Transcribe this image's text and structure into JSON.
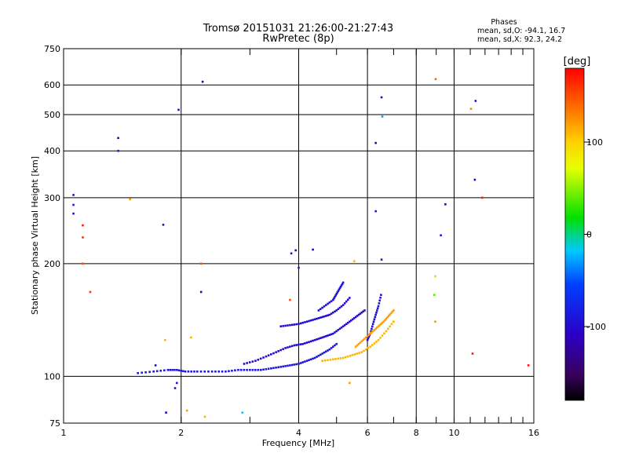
{
  "chart_data": {
    "type": "scatter",
    "title": "Tromsø 20151031 21:26:00-21:27:43",
    "subtitle": "RwPretec (8p)",
    "xlabel": "Frequency [MHz]",
    "ylabel": "Stationary phase Virtual Height [km]",
    "x_scale": "log",
    "y_scale": "log",
    "xlim": [
      1,
      16
    ],
    "ylim": [
      75,
      750
    ],
    "x_ticks": [
      1,
      2,
      4,
      6,
      8,
      10,
      16
    ],
    "x_tick_labels": [
      "1",
      "2",
      "4",
      "6",
      "8",
      "10",
      "16"
    ],
    "y_ticks": [
      75,
      100,
      200,
      300,
      400,
      500,
      600,
      750
    ],
    "y_tick_labels": [
      "75",
      "100",
      "200",
      "300",
      "400",
      "500",
      "600",
      "750"
    ],
    "grid": true,
    "phase_box": {
      "heading": "Phases",
      "line_o": "mean, sd,O: -94.1, 16.7",
      "line_x": "mean, sd,X:  92.3, 24.2"
    },
    "colorbar": {
      "label": "[deg]",
      "range": [
        -180,
        180
      ],
      "ticks": [
        100,
        0,
        -100
      ],
      "tick_labels": [
        "100",
        "0",
        "-100"
      ]
    },
    "traces": [
      {
        "name": "",
        "x": [
          1.55,
          1.7,
          1.85,
          1.95,
          2.05,
          2.2,
          2.4,
          2.6,
          2.8,
          3.0,
          3.2,
          3.4,
          3.6,
          3.8,
          4.0,
          4.2,
          4.4,
          4.6,
          4.8,
          5.0
        ],
        "y": [
          102,
          103,
          104,
          104,
          103,
          103,
          103,
          103,
          104,
          104,
          104,
          105,
          106,
          107,
          108,
          110,
          112,
          115,
          118,
          122
        ],
        "phase": -90
      },
      {
        "name": "",
        "x": [
          2.9,
          3.1,
          3.3,
          3.5,
          3.7,
          3.9,
          4.1,
          4.3,
          4.5,
          4.7,
          4.9,
          5.1,
          5.3,
          5.5,
          5.7,
          5.9
        ],
        "y": [
          108,
          110,
          113,
          116,
          119,
          121,
          122,
          124,
          126,
          128,
          130,
          134,
          138,
          142,
          146,
          150
        ],
        "phase": -100
      },
      {
        "name": "",
        "x": [
          3.6,
          3.8,
          4.0,
          4.2,
          4.4,
          4.6,
          4.8,
          5.0,
          5.2,
          5.4
        ],
        "y": [
          136,
          137,
          138,
          140,
          142,
          144,
          146,
          150,
          155,
          162
        ],
        "phase": -100
      },
      {
        "name": "",
        "x": [
          4.5,
          4.7,
          4.9,
          5.0,
          5.1,
          5.2
        ],
        "y": [
          150,
          155,
          160,
          166,
          172,
          178
        ],
        "phase": -95
      },
      {
        "name": "",
        "x": [
          6.0,
          6.1,
          6.2,
          6.3,
          6.4,
          6.5
        ],
        "y": [
          125,
          130,
          138,
          146,
          154,
          165
        ],
        "phase": -95
      },
      {
        "name": "",
        "x": [
          4.6,
          4.9,
          5.2,
          5.5,
          5.8,
          6.1,
          6.4,
          6.7,
          7.0
        ],
        "y": [
          110,
          111,
          112,
          114,
          116,
          120,
          125,
          132,
          140
        ],
        "phase": 110
      },
      {
        "name": "",
        "x": [
          5.6,
          5.8,
          6.0,
          6.2,
          6.4,
          6.6,
          6.8,
          7.0
        ],
        "y": [
          120,
          124,
          128,
          132,
          136,
          140,
          145,
          150
        ],
        "phase": 120
      }
    ],
    "points": [
      {
        "x": 1.06,
        "y": 305,
        "phase": -100
      },
      {
        "x": 1.06,
        "y": 287,
        "phase": -90
      },
      {
        "x": 1.06,
        "y": 272,
        "phase": -95
      },
      {
        "x": 1.12,
        "y": 253,
        "phase": 170
      },
      {
        "x": 1.12,
        "y": 235,
        "phase": 160
      },
      {
        "x": 1.12,
        "y": 200,
        "phase": 150
      },
      {
        "x": 1.17,
        "y": 168,
        "phase": 160
      },
      {
        "x": 1.38,
        "y": 433,
        "phase": -110
      },
      {
        "x": 1.38,
        "y": 400,
        "phase": -80
      },
      {
        "x": 1.48,
        "y": 297,
        "phase": 120
      },
      {
        "x": 1.72,
        "y": 107,
        "phase": -100
      },
      {
        "x": 1.82,
        "y": 125,
        "phase": 110
      },
      {
        "x": 1.8,
        "y": 254,
        "phase": -90
      },
      {
        "x": 1.97,
        "y": 515,
        "phase": -100
      },
      {
        "x": 2.27,
        "y": 612,
        "phase": -110
      },
      {
        "x": 2.25,
        "y": 200,
        "phase": 150
      },
      {
        "x": 2.25,
        "y": 168,
        "phase": -110
      },
      {
        "x": 2.12,
        "y": 127,
        "phase": 110
      },
      {
        "x": 1.93,
        "y": 93,
        "phase": -100
      },
      {
        "x": 1.95,
        "y": 96,
        "phase": -90
      },
      {
        "x": 1.83,
        "y": 80,
        "phase": -110
      },
      {
        "x": 2.07,
        "y": 81,
        "phase": 120
      },
      {
        "x": 2.3,
        "y": 78,
        "phase": 110
      },
      {
        "x": 2.87,
        "y": 80,
        "phase": -20
      },
      {
        "x": 3.83,
        "y": 213,
        "phase": -100
      },
      {
        "x": 3.93,
        "y": 217,
        "phase": -110
      },
      {
        "x": 4.35,
        "y": 218,
        "phase": -110
      },
      {
        "x": 4.0,
        "y": 195,
        "phase": -90
      },
      {
        "x": 3.8,
        "y": 160,
        "phase": 150
      },
      {
        "x": 5.55,
        "y": 203,
        "phase": 110
      },
      {
        "x": 5.4,
        "y": 96,
        "phase": 120
      },
      {
        "x": 6.3,
        "y": 420,
        "phase": -110
      },
      {
        "x": 6.3,
        "y": 276,
        "phase": -100
      },
      {
        "x": 6.52,
        "y": 556,
        "phase": -100
      },
      {
        "x": 6.55,
        "y": 494,
        "phase": -30
      },
      {
        "x": 6.52,
        "y": 205,
        "phase": -90
      },
      {
        "x": 8.97,
        "y": 622,
        "phase": 140
      },
      {
        "x": 8.95,
        "y": 185,
        "phase": 60
      },
      {
        "x": 8.9,
        "y": 165,
        "phase": 40
      },
      {
        "x": 8.95,
        "y": 140,
        "phase": 120
      },
      {
        "x": 9.25,
        "y": 238,
        "phase": -100
      },
      {
        "x": 9.5,
        "y": 288,
        "phase": -110
      },
      {
        "x": 11.05,
        "y": 518,
        "phase": 130
      },
      {
        "x": 11.35,
        "y": 544,
        "phase": -100
      },
      {
        "x": 11.3,
        "y": 335,
        "phase": -110
      },
      {
        "x": 11.15,
        "y": 115,
        "phase": 170
      },
      {
        "x": 11.8,
        "y": 300,
        "phase": 170
      },
      {
        "x": 15.5,
        "y": 107,
        "phase": 175
      }
    ]
  }
}
